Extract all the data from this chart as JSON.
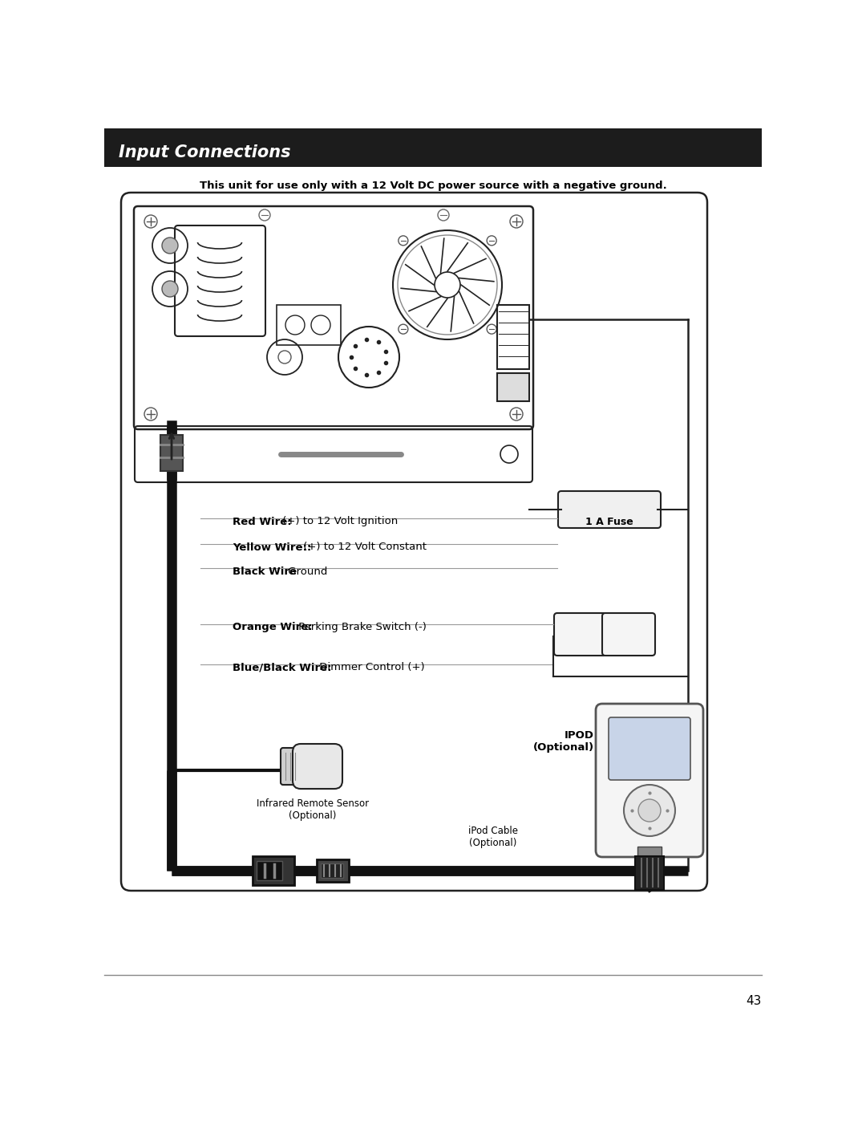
{
  "title_bar_text": "Input Connections",
  "subtitle": "This unit for use only with a 12 Volt DC power source with a negative ground.",
  "wire_labels": [
    {
      "bold": "Red Wire:",
      "normal": " (+) to 12 Volt Ignition"
    },
    {
      "bold": "Yellow Wire::",
      "normal": " (+) to 12 Volt Constant"
    },
    {
      "bold": "Black Wire",
      "normal": " Ground"
    },
    {
      "bold": "Orange Wire:",
      "normal": " Parking Brake Switch (-)"
    },
    {
      "bold": "Blue/Black Wire:",
      "normal": " Dimmer Control (+)"
    }
  ],
  "fuse_label": "1 A Fuse",
  "ir_label": "Infrared Remote Sensor\n(Optional)",
  "ipod_label": "IPOD\n(Optional)",
  "cable_label": "iPod Cable\n(Optional)",
  "page_number": "43",
  "bg_color": "#ffffff",
  "title_bar_color": "#1c1c1c",
  "title_text_color": "#ffffff",
  "body_text_color": "#000000",
  "line_color": "#000000"
}
